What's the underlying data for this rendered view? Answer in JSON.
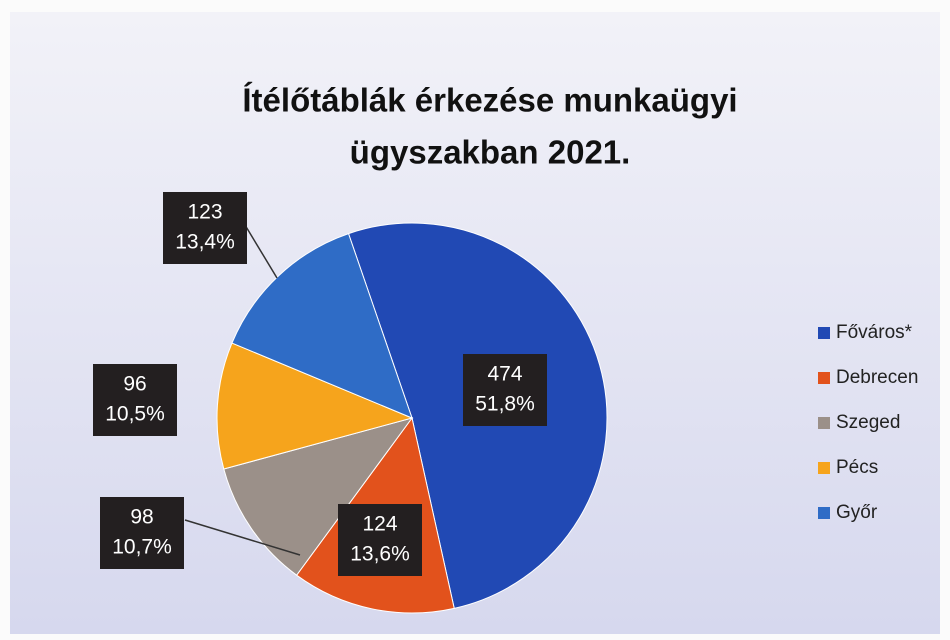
{
  "chart_data": {
    "type": "pie",
    "title": [
      "Ítélőtáblák érkezése munkaügyi",
      "ügyszakban 2021."
    ],
    "categories": [
      "Főváros*",
      "Debrecen",
      "Szeged",
      "Pécs",
      "Győr"
    ],
    "values": [
      474,
      124,
      98,
      96,
      123
    ],
    "percentages": [
      51.8,
      13.6,
      10.7,
      10.5,
      13.4
    ],
    "percentage_labels": [
      "51,8%",
      "13,6%",
      "10,7%",
      "10,5%",
      "13,4%"
    ],
    "colors": [
      "#2149b4",
      "#e2521c",
      "#9b9089",
      "#f6a41c",
      "#2f6cc6"
    ],
    "legend": "right"
  }
}
